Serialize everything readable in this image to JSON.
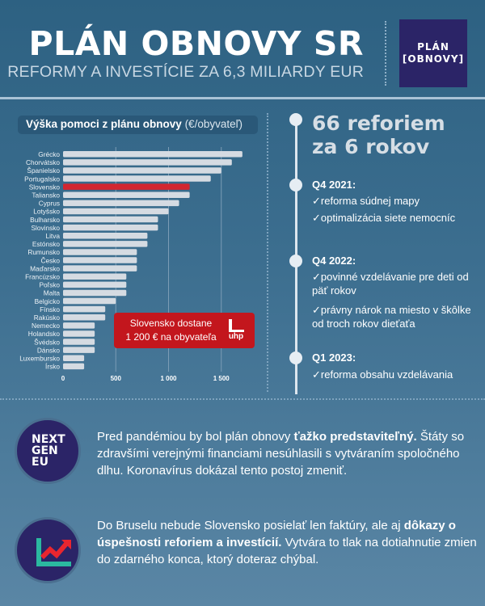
{
  "header": {
    "title": "PLÁN OBNOVY SR",
    "subtitle": "REFORMY A INVESTÍCIE ZA 6,3 MILIARDY EUR",
    "logo": [
      "PLÁN",
      "OBNOVY"
    ]
  },
  "colors": {
    "bar": "#d5dbe2",
    "highlight": "#d22630",
    "callout": "#c3161d",
    "logo_bg": "#2b2467"
  },
  "chart_data": {
    "type": "bar",
    "orientation": "horizontal",
    "title": "Výška pomoci z plánu obnovy",
    "title_unit": "(€/obyvateľ)",
    "categories": [
      "Grécko",
      "Chorvátsko",
      "Španielsko",
      "Portugalsko",
      "Slovensko",
      "Taliansko",
      "Cyprus",
      "Lotyšsko",
      "Bulharsko",
      "Slovinsko",
      "Litva",
      "Estónsko",
      "Rumunsko",
      "Česko",
      "Maďarsko",
      "Francúzsko",
      "Poľsko",
      "Malta",
      "Belgicko",
      "Fínsko",
      "Rakúsko",
      "Nemecko",
      "Holandsko",
      "Švédsko",
      "Dánsko",
      "Luxembursko",
      "Írsko"
    ],
    "values": [
      1700,
      1600,
      1500,
      1400,
      1200,
      1200,
      1100,
      1000,
      900,
      900,
      800,
      800,
      700,
      700,
      700,
      600,
      600,
      600,
      500,
      400,
      400,
      300,
      300,
      300,
      300,
      200,
      200
    ],
    "highlight": "Slovensko",
    "xlim": [
      0,
      1750
    ],
    "xticks": [
      0,
      500,
      1000,
      1500
    ],
    "xtick_labels": [
      "0",
      "500",
      "1 000",
      "1 500"
    ],
    "grid": true,
    "annotation": [
      "Slovensko dostane",
      "1 200 € na obyvateľa"
    ],
    "annotation_logo": "uhp"
  },
  "timeline": {
    "headline": [
      "66 reforiem",
      "za 6 rokov"
    ],
    "entries": [
      {
        "label": "Q4 2021:",
        "items": [
          "✓reforma súdnej mapy",
          "✓optimalizácia siete nemocníc"
        ]
      },
      {
        "label": "Q4 2022:",
        "items": [
          "✓povinné vzdelávanie pre deti od päť rokov",
          "✓právny nárok na miesto v škôlke od troch rokov dieťaťa"
        ]
      },
      {
        "label": "Q1 2023:",
        "items": [
          "✓reforma obsahu vzdelávania"
        ]
      }
    ]
  },
  "info": [
    {
      "icon": "nextgeneu-logo",
      "logo_text": [
        "NEXT",
        "GEN",
        "EU"
      ],
      "pre": "Pred pandémiou by bol plán obnovy ",
      "bold": "ťažko predstaviteľný.",
      "post": " Štáty so zdravšími verejnými financiami nesúhlasili s vytváraním spoločného dlhu. Koronavírus dokázal tento postoj zmeniť."
    },
    {
      "icon": "growth-chart-icon",
      "pre": "Do Bruselu nebude Slovensko posielať len faktúry, ale aj ",
      "bold": "dôkazy o úspešnosti reforiem a investícií.",
      "post": " Vytvára to tlak na dotiahnutie zmien do zdarného konca, ktorý doteraz chýbal."
    }
  ]
}
